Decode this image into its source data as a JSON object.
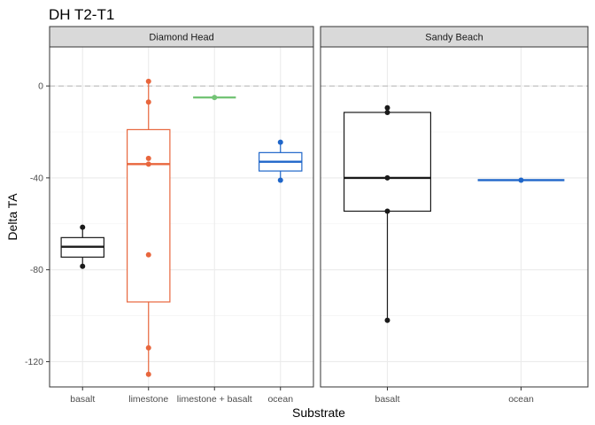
{
  "chart_data": {
    "type": "boxplot",
    "title": "DH T2-T1",
    "xlabel": "Substrate",
    "ylabel": "Delta TA",
    "ylim": [
      -131,
      17
    ],
    "yticks": [
      0,
      -40,
      -80,
      -120
    ],
    "ytick_labels": [
      "0",
      "-40",
      "-80",
      "-120"
    ],
    "reference_line": 0,
    "grid": true,
    "colors": {
      "basalt": "#1a1a1a",
      "limestone": "#E8663D",
      "limestone + basalt": "#74C476",
      "ocean": "#1F66C9"
    },
    "panels": [
      {
        "name": "Diamond Head",
        "categories": [
          "basalt",
          "limestone",
          "limestone + basalt",
          "ocean"
        ],
        "boxes": [
          {
            "category": "basalt",
            "min": -78.5,
            "q1": -74.5,
            "median": -70,
            "q3": -66,
            "max": -61.5,
            "points": [
              -61.5,
              -78.5
            ]
          },
          {
            "category": "limestone",
            "min": -125.5,
            "q1": -94,
            "median": -34,
            "q3": -19,
            "max": 2,
            "points": [
              2,
              -7,
              -31.5,
              -34,
              -73.5,
              -114,
              -125.5
            ]
          },
          {
            "category": "limestone + basalt",
            "min": -5,
            "q1": -5,
            "median": -5,
            "q3": -5,
            "max": -5,
            "points": [
              -5
            ]
          },
          {
            "category": "ocean",
            "min": -41,
            "q1": -37,
            "median": -33,
            "q3": -29,
            "max": -24.5,
            "points": [
              -24.5,
              -41
            ]
          }
        ]
      },
      {
        "name": "Sandy Beach",
        "categories": [
          "basalt",
          "ocean"
        ],
        "boxes": [
          {
            "category": "basalt",
            "min": -102,
            "q1": -54.5,
            "median": -40,
            "q3": -11.5,
            "max": -9.5,
            "points": [
              -9.5,
              -11.5,
              -40,
              -54.5,
              -102
            ]
          },
          {
            "category": "ocean",
            "min": -41,
            "q1": -41,
            "median": -41,
            "q3": -41,
            "max": -41,
            "points": [
              -41
            ]
          }
        ]
      }
    ]
  }
}
